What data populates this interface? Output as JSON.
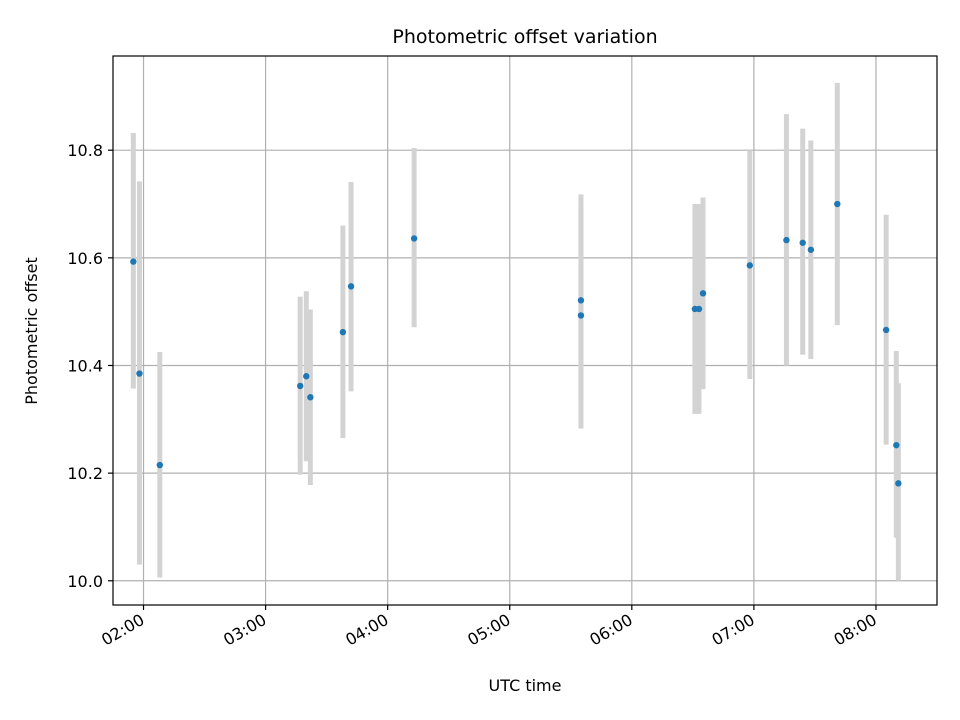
{
  "chart_data": {
    "type": "scatter",
    "title": "Photometric offset variation",
    "xlabel": "UTC time",
    "ylabel": "Photometric offset",
    "x_unit": "hours UTC",
    "xlim": [
      "01:45",
      "08:30"
    ],
    "ylim": [
      9.955,
      10.975
    ],
    "x_ticks": [
      "02:00",
      "03:00",
      "04:00",
      "05:00",
      "06:00",
      "07:00",
      "08:00"
    ],
    "y_ticks": [
      "10.0",
      "10.2",
      "10.4",
      "10.6",
      "10.8"
    ],
    "grid": true,
    "colors": {
      "marker": "#1f77b4",
      "errorbar": "#d3d3d3",
      "grid": "#b0b0b0"
    },
    "points": [
      {
        "x": "01:55",
        "y": 10.593,
        "lo": 10.357,
        "hi": 10.832
      },
      {
        "x": "01:58",
        "y": 10.385,
        "lo": 10.03,
        "hi": 10.742
      },
      {
        "x": "02:08",
        "y": 10.215,
        "lo": 10.006,
        "hi": 10.425
      },
      {
        "x": "03:17",
        "y": 10.362,
        "lo": 10.197,
        "hi": 10.528
      },
      {
        "x": "03:20",
        "y": 10.38,
        "lo": 10.222,
        "hi": 10.538
      },
      {
        "x": "03:22",
        "y": 10.341,
        "lo": 10.178,
        "hi": 10.504
      },
      {
        "x": "03:38",
        "y": 10.462,
        "lo": 10.265,
        "hi": 10.66
      },
      {
        "x": "03:42",
        "y": 10.547,
        "lo": 10.352,
        "hi": 10.741
      },
      {
        "x": "04:13",
        "y": 10.636,
        "lo": 10.471,
        "hi": 10.804
      },
      {
        "x": "05:35",
        "y": 10.493,
        "lo": 10.283,
        "hi": 10.703
      },
      {
        "x": "05:35",
        "y": 10.521,
        "lo": 10.328,
        "hi": 10.718
      },
      {
        "x": "06:31",
        "y": 10.505,
        "lo": 10.31,
        "hi": 10.7
      },
      {
        "x": "06:33",
        "y": 10.505,
        "lo": 10.31,
        "hi": 10.7
      },
      {
        "x": "06:35",
        "y": 10.534,
        "lo": 10.356,
        "hi": 10.712
      },
      {
        "x": "06:58",
        "y": 10.586,
        "lo": 10.375,
        "hi": 10.8
      },
      {
        "x": "07:16",
        "y": 10.633,
        "lo": 10.4,
        "hi": 10.867
      },
      {
        "x": "07:24",
        "y": 10.628,
        "lo": 10.42,
        "hi": 10.84
      },
      {
        "x": "07:28",
        "y": 10.615,
        "lo": 10.412,
        "hi": 10.818
      },
      {
        "x": "07:41",
        "y": 10.7,
        "lo": 10.475,
        "hi": 10.925
      },
      {
        "x": "08:05",
        "y": 10.466,
        "lo": 10.253,
        "hi": 10.68
      },
      {
        "x": "08:10",
        "y": 10.252,
        "lo": 10.08,
        "hi": 10.427
      },
      {
        "x": "08:11",
        "y": 10.181,
        "lo": 10.0,
        "hi": 10.367
      }
    ]
  }
}
